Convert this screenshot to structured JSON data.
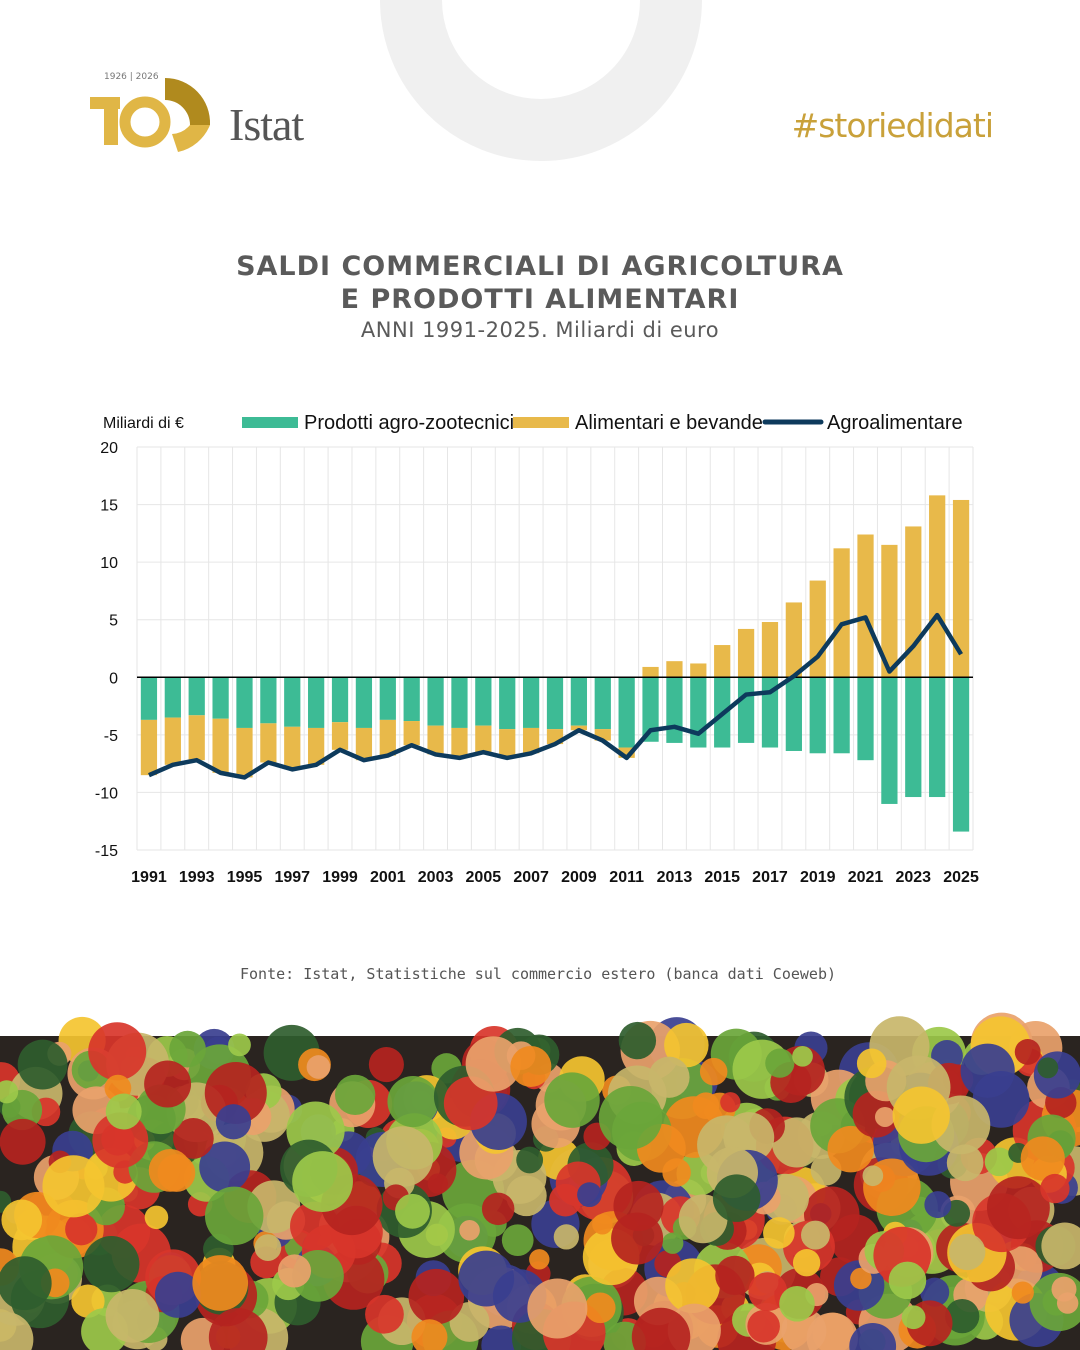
{
  "header": {
    "logo_years": "1926 | 2026",
    "logo_name": "Istat",
    "hashtag": "#storiedidati"
  },
  "chart_data": {
    "type": "bar",
    "title": "SALDI COMMERCIALI DI AGRICOLTURA",
    "title_line2": "E PRODOTTI ALIMENTARI",
    "subtitle": "ANNI 1991-2025. Miliardi di euro",
    "y_label": "Miliardi di €",
    "categories": [
      "1991",
      null,
      "1993",
      null,
      "1995",
      null,
      "1997",
      null,
      "1999",
      null,
      "2001",
      null,
      "2003",
      null,
      "2005",
      null,
      "2007",
      null,
      "2009",
      null,
      "2011",
      null,
      "2013",
      null,
      "2015",
      null,
      "2017",
      null,
      "2019",
      null,
      "2021",
      null,
      "2023",
      null,
      "2025"
    ],
    "series": [
      {
        "name": "Prodotti agro-zootecnici",
        "color": "#3dbb95",
        "type": "bar",
        "values": [
          -3.7,
          -3.5,
          -3.3,
          -3.6,
          -4.4,
          -4.0,
          -4.3,
          -4.4,
          -3.9,
          -4.4,
          -3.7,
          -3.8,
          -4.2,
          -4.4,
          -4.2,
          -4.5,
          -4.4,
          -4.5,
          -4.2,
          -4.5,
          -6.1,
          -5.6,
          -5.7,
          -6.1,
          -6.1,
          -5.7,
          -6.1,
          -6.4,
          -6.6,
          -6.6,
          -7.2,
          -11.0,
          -10.4,
          -10.4,
          -13.4
        ]
      },
      {
        "name": "Alimentari e bevande",
        "color": "#e8b94a",
        "type": "bar",
        "values": [
          -4.8,
          -4.1,
          -3.9,
          -4.7,
          -4.3,
          -3.4,
          -3.7,
          -3.2,
          -2.4,
          -2.8,
          -3.1,
          -2.1,
          -2.5,
          -2.6,
          -2.3,
          -2.5,
          -2.2,
          -1.3,
          -0.4,
          -1.0,
          -0.9,
          0.9,
          1.4,
          1.2,
          2.8,
          4.2,
          4.8,
          6.5,
          8.4,
          11.2,
          12.4,
          11.5,
          13.1,
          15.8,
          15.4
        ]
      },
      {
        "name": "Agroalimentare",
        "color": "#0d3a5c",
        "type": "line",
        "values": [
          -8.5,
          -7.6,
          -7.2,
          -8.3,
          -8.7,
          -7.4,
          -8.0,
          -7.6,
          -6.3,
          -7.2,
          -6.8,
          -5.9,
          -6.7,
          -7.0,
          -6.5,
          -7.0,
          -6.6,
          -5.8,
          -4.6,
          -5.5,
          -7.0,
          -4.6,
          -4.3,
          -4.9,
          -3.2,
          -1.5,
          -1.3,
          0.1,
          1.8,
          4.6,
          5.2,
          0.5,
          2.7,
          5.4,
          2.0
        ]
      }
    ],
    "ylim": [
      -15,
      20
    ],
    "yticks": [
      -15,
      -10,
      -5,
      0,
      5,
      10,
      15,
      20
    ],
    "grid": true
  },
  "source": "Fonte:  Istat, Statistiche sul commercio estero (banca dati Coeweb)"
}
